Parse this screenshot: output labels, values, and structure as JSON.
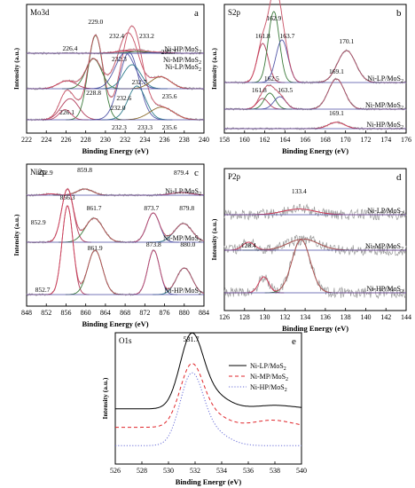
{
  "chart_data": [
    {
      "type": "line",
      "panel_letter": "a",
      "title": "Mo3d",
      "xlabel": "Binding Energy (eV)",
      "ylabel": "Intensity (a.u.)",
      "xlim": [
        222,
        240
      ],
      "xticks": [
        222,
        224,
        226,
        228,
        230,
        232,
        234,
        236,
        238,
        240
      ],
      "annotations": [
        "229.0",
        "232.4",
        "233.2",
        "226.4",
        "232.3",
        "235.7",
        "232.7",
        "228.8",
        "232.6",
        "235.6",
        "232.0",
        "226.1",
        "232.3",
        "233.3",
        "235.6"
      ],
      "series": [
        {
          "name": "Ni-LP/MoS2",
          "peaks": [
            226.4,
            229.0,
            232.3,
            232.4,
            233.2,
            235.7
          ]
        },
        {
          "name": "Ni-MP/MoS2",
          "peaks": [
            226.1,
            228.8,
            232.0,
            232.6,
            232.7,
            235.6
          ]
        },
        {
          "name": "Ni-HP/MoS2",
          "peaks": [
            232.3,
            233.3,
            235.6
          ]
        }
      ],
      "series_labels": [
        "Ni-LP/MoS",
        "Ni-MP/MoS",
        "Ni-HP/MoS"
      ],
      "label_subscript": "2"
    },
    {
      "type": "line",
      "panel_letter": "b",
      "title": "S2p",
      "xlabel": "Binding Energy (eV)",
      "ylabel": "Intensity (a.u.)",
      "xlim": [
        158,
        176
      ],
      "xticks": [
        158,
        160,
        162,
        164,
        166,
        168,
        170,
        172,
        174,
        176
      ],
      "annotations": [
        "161.8",
        "162.9",
        "163.7",
        "170.1",
        "161.8",
        "162.5",
        "163.5",
        "169.1",
        "169.1"
      ],
      "series": [
        {
          "name": "Ni-LP/MoS2",
          "peaks": [
            161.8,
            162.9,
            163.7,
            170.1
          ]
        },
        {
          "name": "Ni-MP/MoS2",
          "peaks": [
            161.8,
            162.5,
            163.5,
            169.1
          ]
        },
        {
          "name": "Ni-HP/MoS2",
          "peaks": [
            169.1
          ]
        }
      ],
      "series_labels": [
        "Ni-LP/MoS",
        "Ni-MP/MoS",
        "Ni-HP/MoS"
      ],
      "label_subscript": "2"
    },
    {
      "type": "line",
      "panel_letter": "c",
      "title": "Ni2p",
      "xlabel": "Binding Energy (eV)",
      "ylabel": "Intensity (a.u.)",
      "xlim": [
        848,
        884
      ],
      "xticks": [
        848,
        852,
        856,
        860,
        864,
        868,
        872,
        876,
        880,
        884
      ],
      "annotations": [
        "852.9",
        "859.8",
        "879.4",
        "856.3",
        "861.7",
        "873.7",
        "879.8",
        "852.9",
        "861.9",
        "873.8",
        "880.0",
        "852.7"
      ],
      "series": [
        {
          "name": "Ni-LP/MoS2",
          "peaks": [
            852.9,
            859.8,
            879.4
          ]
        },
        {
          "name": "Ni-MP/MoS2",
          "peaks": [
            852.9,
            856.3,
            861.7,
            873.7,
            879.8
          ]
        },
        {
          "name": "Ni-HP/MoS2",
          "peaks": [
            852.7,
            856.3,
            861.9,
            873.8,
            880.0
          ]
        }
      ],
      "series_labels": [
        "Ni-LP/MoS",
        "Ni-MP/MoS",
        "Ni-HP/MoS"
      ],
      "label_subscript": "2"
    },
    {
      "type": "line",
      "panel_letter": "d",
      "title": "P2p",
      "xlabel": "Binding Energy (eV)",
      "ylabel": "Intensity (a.u.)",
      "xlim": [
        126,
        144
      ],
      "xticks": [
        126,
        128,
        130,
        132,
        134,
        136,
        138,
        140,
        142,
        144
      ],
      "annotations": [
        "133.4",
        "128.4"
      ],
      "series": [
        {
          "name": "Ni-LP/MoS2",
          "peaks": [
            133.4
          ]
        },
        {
          "name": "Ni-MP/MoS2",
          "peaks": [
            128.4,
            133.8
          ]
        },
        {
          "name": "Ni-HP/MoS2",
          "peaks": [
            129.9,
            133.6
          ]
        }
      ],
      "series_labels": [
        "Ni-LP/MoS",
        "Ni-MP/MoS",
        "Ni-HP/MoS"
      ],
      "label_subscript": "2"
    },
    {
      "type": "line",
      "panel_letter": "e",
      "title": "O1s",
      "xlabel": "Binding Energr (eV)",
      "ylabel": "Intensity (a.u.)",
      "xlim": [
        526,
        540
      ],
      "xticks": [
        526,
        528,
        530,
        532,
        534,
        536,
        538,
        540
      ],
      "annotations": [
        "531.7"
      ],
      "legend_position": "top-right",
      "series": [
        {
          "name": "Ni-LP/MoS2",
          "style": "solid",
          "color": "#000000",
          "peak": 531.7
        },
        {
          "name": "Ni-MP/MoS2",
          "style": "dashed",
          "color": "#e0262b",
          "peak": 531.7
        },
        {
          "name": "Ni-HP/MoS2",
          "style": "dotted",
          "color": "#6a6fd8",
          "peak": 531.7
        }
      ],
      "legend_labels": [
        "Ni-LP/MoS",
        "Ni-MP/MoS",
        "Ni-HP/MoS"
      ],
      "label_subscript": "2"
    }
  ]
}
